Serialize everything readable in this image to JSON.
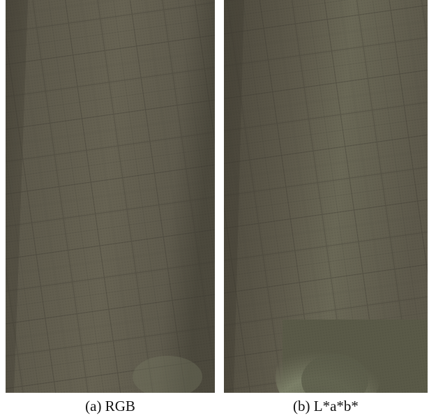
{
  "panels": [
    {
      "caption": "(a) RGB"
    },
    {
      "caption": "(b) L*a*b*"
    }
  ]
}
